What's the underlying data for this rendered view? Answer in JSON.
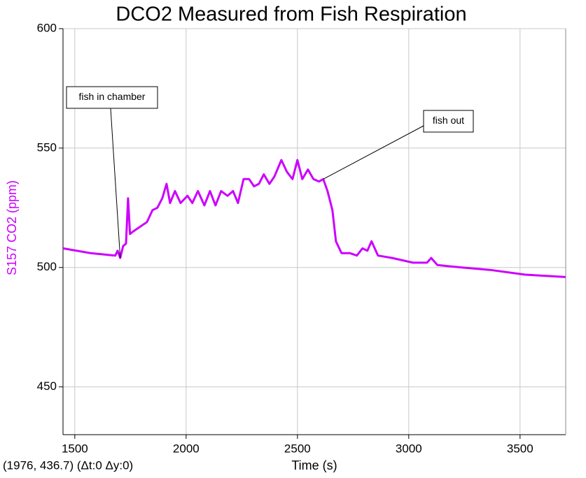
{
  "chart_data": {
    "type": "line",
    "title": "DCO2 Measured from Fish Respiration",
    "x_label": "Time (s)",
    "y_label": "S157 CO2 (ppm)",
    "status": "(1976, 436.7) (Δt:0 Δy:0)",
    "xlim": [
      1447,
      3705
    ],
    "ylim": [
      430,
      600
    ],
    "xticks": [
      1500,
      2000,
      2500,
      3000,
      3500
    ],
    "yticks": [
      450,
      500,
      550,
      600
    ],
    "grid": true,
    "annotations": [
      {
        "text": "fish in chamber",
        "x": 1704
      },
      {
        "text": "fish out",
        "x": 2616
      }
    ],
    "x": [
      1447,
      1572,
      1682,
      1692,
      1704,
      1717,
      1730,
      1739,
      1748,
      1761,
      1792,
      1824,
      1849,
      1871,
      1893,
      1912,
      1928,
      1950,
      1975,
      2006,
      2028,
      2053,
      2082,
      2107,
      2132,
      2157,
      2186,
      2211,
      2233,
      2258,
      2283,
      2305,
      2327,
      2349,
      2374,
      2396,
      2428,
      2453,
      2478,
      2500,
      2522,
      2547,
      2572,
      2597,
      2616,
      2635,
      2657,
      2673,
      2698,
      2736,
      2767,
      2792,
      2814,
      2833,
      2862,
      2925,
      3019,
      3082,
      3101,
      3129,
      3239,
      3365,
      3522,
      3704
    ],
    "series": [
      {
        "name": "S157 CO2 (ppm)",
        "color": "#cc00ff",
        "values": [
          508,
          506,
          505,
          507,
          504,
          509,
          510,
          529,
          514,
          515,
          517,
          519,
          524,
          525,
          529,
          535,
          527,
          532,
          527,
          530,
          527,
          532,
          526,
          532,
          526,
          532,
          530,
          532,
          527,
          537,
          537,
          534,
          535,
          539,
          535,
          538,
          545,
          540,
          537,
          545,
          537,
          541,
          537,
          536,
          537,
          532,
          524,
          511,
          506,
          506,
          505,
          508,
          507,
          511,
          505,
          504,
          502,
          502,
          504,
          501,
          500,
          499,
          497,
          496
        ]
      }
    ]
  }
}
